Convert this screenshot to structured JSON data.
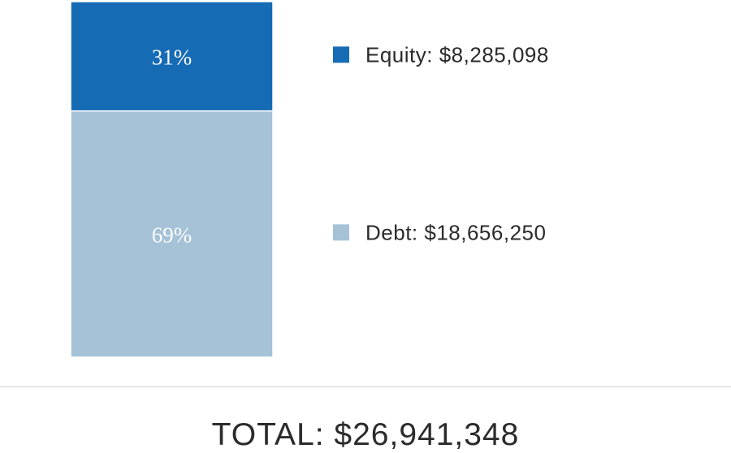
{
  "chart_data": {
    "type": "bar",
    "stacked": true,
    "categories": [
      ""
    ],
    "series": [
      {
        "name": "Equity",
        "legend": "Equity: $8,285,098",
        "value": 8285098,
        "percent_label": "31%",
        "color": "#166bb5"
      },
      {
        "name": "Debt",
        "legend": "Debt: $18,656,250",
        "value": 18656250,
        "percent_label": "69%",
        "color": "#a5c2d7"
      }
    ],
    "total": 26941348,
    "total_label": "TOTAL: $26,941,348",
    "legend_placement": "right",
    "grid": false
  }
}
